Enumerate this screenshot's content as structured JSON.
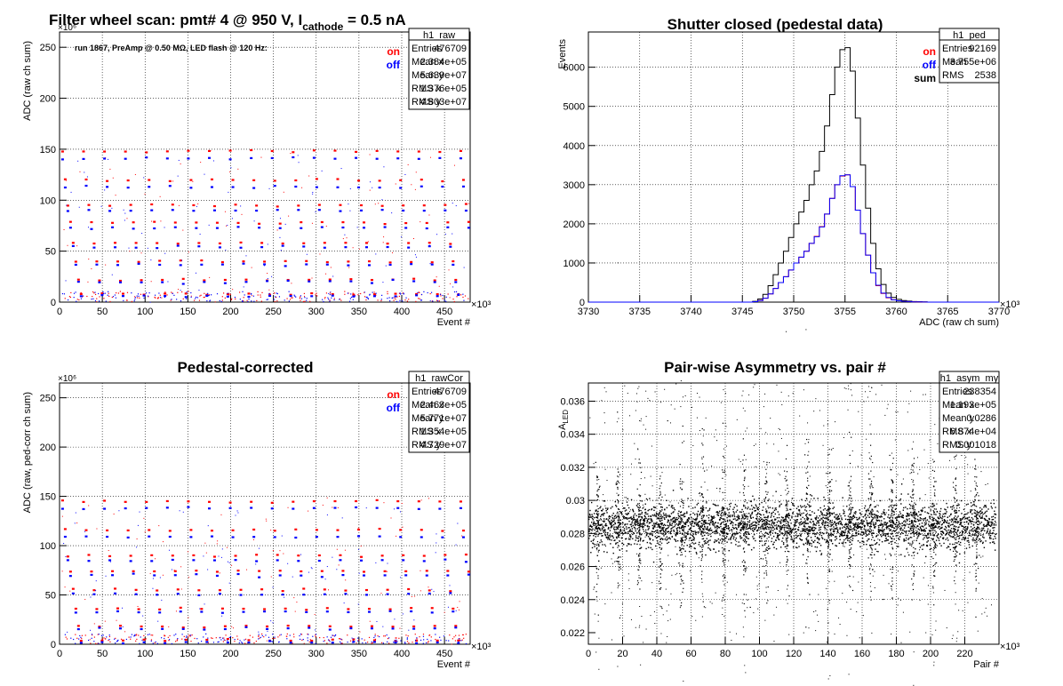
{
  "colors": {
    "on": "#ff0000",
    "off": "#0000ff",
    "sum": "#000000",
    "frame": "#000000",
    "grid": "#000000"
  },
  "chart_data": [
    {
      "id": "raw",
      "type": "scatter",
      "title": "Filter wheel scan: pmt#   4 @   950 V, I",
      "title_sub": "cathode",
      "title_tail": "  = 0.5 nA",
      "subtitle": "run 1867, PreAmp @ 0.50 MΩ, LED flash @  120 Hz:",
      "xlabel": "Event #",
      "ylabel": "ADC (raw ch sum)",
      "x_multiplier": "×10³",
      "y_multiplier": "×10⁶",
      "xlim": [
        0,
        480
      ],
      "ylim": [
        0,
        265
      ],
      "xticks": [
        "0",
        "50",
        "100",
        "150",
        "200",
        "250",
        "300",
        "350",
        "400",
        "450"
      ],
      "yticks": [
        "0",
        "50",
        "100",
        "150",
        "200",
        "250"
      ],
      "grid": true,
      "legend_labels": [
        "on",
        "off"
      ],
      "stats": {
        "name": "h1_raw",
        "rows": [
          [
            "Entries",
            "476709"
          ],
          [
            "Mean x",
            "2.384e+05"
          ],
          [
            "Mean y",
            "5.639e+07"
          ],
          [
            "RMS x",
            "1.376e+05"
          ],
          [
            "RMS y",
            "4.803e+07"
          ]
        ]
      },
      "series": [
        {
          "name": "on",
          "plateau_levels": [
            148,
            120,
            95,
            78,
            58,
            40,
            22,
            8
          ]
        },
        {
          "name": "off",
          "plateau_levels": [
            141,
            113,
            90,
            73,
            54,
            37,
            20,
            6
          ]
        }
      ],
      "step_period": 24.5
    },
    {
      "id": "ped",
      "type": "histogram",
      "title": "Shutter closed (pedestal data)",
      "xlabel": "ADC (raw ch sum)",
      "ylabel": "Events",
      "x_multiplier": "×10³",
      "xlim": [
        3730,
        3770
      ],
      "ylim": [
        0,
        6900
      ],
      "xticks": [
        "3730",
        "3735",
        "3740",
        "3745",
        "3750",
        "3755",
        "3760",
        "3765",
        "3770"
      ],
      "yticks": [
        "0",
        "1000",
        "2000",
        "3000",
        "4000",
        "5000",
        "6000"
      ],
      "grid": true,
      "legend_labels": [
        "on",
        "off",
        "sum"
      ],
      "stats": {
        "name": "h1_ped",
        "rows": [
          [
            "Entries",
            "92169"
          ],
          [
            "Mean",
            "3.755e+06"
          ],
          [
            "RMS",
            "2538"
          ]
        ]
      },
      "bins": [
        3746,
        3746.5,
        3747,
        3747.5,
        3748,
        3748.5,
        3749,
        3749.5,
        3750,
        3750.5,
        3751,
        3751.5,
        3752,
        3752.5,
        3753,
        3753.5,
        3754,
        3754.5,
        3755,
        3755.5,
        3756,
        3756.5,
        3757,
        3757.5,
        3758,
        3758.5,
        3759,
        3759.5,
        3760,
        3760.5,
        3761,
        3761.5,
        3762,
        3762.5,
        3763,
        3763.5,
        3764
      ],
      "series": [
        {
          "name": "sum",
          "values": [
            20,
            80,
            200,
            420,
            700,
            1000,
            1300,
            1650,
            2000,
            2300,
            2600,
            3000,
            3350,
            3850,
            4500,
            5300,
            6000,
            6450,
            6500,
            5900,
            4700,
            3500,
            2400,
            1500,
            850,
            450,
            230,
            120,
            70,
            40,
            25,
            15,
            10,
            5,
            0,
            0,
            0
          ]
        },
        {
          "name": "on",
          "values": [
            10,
            40,
            100,
            210,
            350,
            500,
            650,
            820,
            1000,
            1150,
            1300,
            1500,
            1680,
            1930,
            2250,
            2650,
            3000,
            3220,
            3250,
            2950,
            2350,
            1750,
            1200,
            750,
            420,
            220,
            110,
            60,
            35,
            20,
            12,
            8,
            5,
            2,
            0,
            0,
            0
          ]
        },
        {
          "name": "off",
          "values": [
            10,
            40,
            100,
            210,
            350,
            500,
            650,
            820,
            1000,
            1150,
            1300,
            1500,
            1670,
            1920,
            2250,
            2650,
            3000,
            3230,
            3250,
            2950,
            2350,
            1750,
            1200,
            750,
            430,
            230,
            120,
            60,
            35,
            20,
            13,
            7,
            5,
            3,
            0,
            0,
            0
          ]
        }
      ]
    },
    {
      "id": "rawcor",
      "type": "scatter",
      "title": "Pedestal-corrected",
      "xlabel": "Event #",
      "ylabel": "ADC (raw, ped-corr ch sum)",
      "x_multiplier": "×10³",
      "y_multiplier": "×10⁶",
      "xlim": [
        0,
        480
      ],
      "ylim": [
        0,
        265
      ],
      "xticks": [
        "0",
        "50",
        "100",
        "150",
        "200",
        "250",
        "300",
        "350",
        "400",
        "450"
      ],
      "yticks": [
        "0",
        "50",
        "100",
        "150",
        "200",
        "250"
      ],
      "grid": true,
      "legend_labels": [
        "on",
        "off"
      ],
      "stats": {
        "name": "h1_rawCor",
        "rows": [
          [
            "Entries",
            "476709"
          ],
          [
            "Mean x",
            "2.463e+05"
          ],
          [
            "Mean y",
            "5.771e+07"
          ],
          [
            "RMS x",
            "1.354e+05"
          ],
          [
            "RMS y",
            "4.729e+07"
          ]
        ]
      },
      "series": [
        {
          "name": "on",
          "plateau_levels": [
            145,
            116,
            90,
            74,
            55,
            36,
            18,
            4
          ]
        },
        {
          "name": "off",
          "plateau_levels": [
            138,
            109,
            85,
            70,
            51,
            33,
            16,
            2
          ]
        }
      ],
      "step_period": 24.5
    },
    {
      "id": "asym",
      "type": "scatter",
      "title": "Pair-wise Asymmetry vs. pair #",
      "xlabel": "Pair #",
      "ylabel": "A_LED",
      "x_multiplier": "×10³",
      "xlim": [
        0,
        240
      ],
      "ylim": [
        0.0213,
        0.0371
      ],
      "xticks": [
        "0",
        "20",
        "40",
        "60",
        "80",
        "100",
        "120",
        "140",
        "160",
        "180",
        "200",
        "220"
      ],
      "yticks": [
        "0.022",
        "0.024",
        "0.026",
        "0.028",
        "0.03",
        "0.032",
        "0.034",
        "0.036"
      ],
      "grid": true,
      "stats": {
        "name": "h1_asym_my",
        "rows": [
          [
            "Entries",
            "238354"
          ],
          [
            "Mean x",
            "1.193e+05"
          ],
          [
            "Mean y",
            "0.0286"
          ],
          [
            "RMS x",
            "6.874e+04"
          ],
          [
            "RMS y",
            "0.001018"
          ]
        ]
      },
      "band": {
        "center": 0.0285,
        "halfwidth": 0.0012
      },
      "spike_period": 12.3
    }
  ]
}
